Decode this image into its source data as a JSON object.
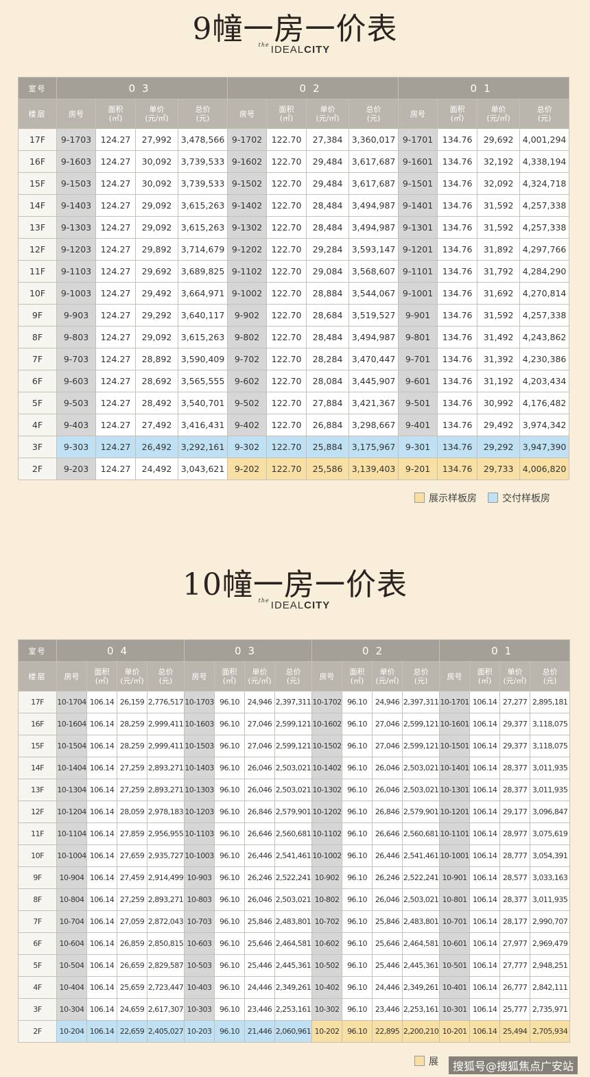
{
  "b9": {
    "title": "9幢一房一价表",
    "logo": {
      "the": "the",
      "ideal": "IDEAL",
      "city": "CITY"
    },
    "hdr_room": "室号",
    "hdr_floor": "楼层",
    "groups": [
      "03",
      "02",
      "01"
    ],
    "subhdr": [
      [
        "房号"
      ],
      [
        "面积",
        "(㎡)"
      ],
      [
        "单价",
        "(元/㎡)"
      ],
      [
        "总价",
        "(元)"
      ]
    ],
    "rows": [
      {
        "floor": "17F",
        "units": [
          [
            "9-1703",
            "124.27",
            "27,992",
            "3,478,566"
          ],
          [
            "9-1702",
            "122.70",
            "27,384",
            "3,360,017"
          ],
          [
            "9-1701",
            "134.76",
            "29,692",
            "4,001,294"
          ]
        ]
      },
      {
        "floor": "16F",
        "units": [
          [
            "9-1603",
            "124.27",
            "30,092",
            "3,739,533"
          ],
          [
            "9-1602",
            "122.70",
            "29,484",
            "3,617,687"
          ],
          [
            "9-1601",
            "134.76",
            "32,192",
            "4,338,194"
          ]
        ]
      },
      {
        "floor": "15F",
        "units": [
          [
            "9-1503",
            "124.27",
            "30,092",
            "3,739,533"
          ],
          [
            "9-1502",
            "122.70",
            "29,484",
            "3,617,687"
          ],
          [
            "9-1501",
            "134.76",
            "32,092",
            "4,324,718"
          ]
        ]
      },
      {
        "floor": "14F",
        "units": [
          [
            "9-1403",
            "124.27",
            "29,092",
            "3,615,263"
          ],
          [
            "9-1402",
            "122.70",
            "28,484",
            "3,494,987"
          ],
          [
            "9-1401",
            "134.76",
            "31,592",
            "4,257,338"
          ]
        ]
      },
      {
        "floor": "13F",
        "units": [
          [
            "9-1303",
            "124.27",
            "29,092",
            "3,615,263"
          ],
          [
            "9-1302",
            "122.70",
            "28,484",
            "3,494,987"
          ],
          [
            "9-1301",
            "134.76",
            "31,592",
            "4,257,338"
          ]
        ]
      },
      {
        "floor": "12F",
        "units": [
          [
            "9-1203",
            "124.27",
            "29,892",
            "3,714,679"
          ],
          [
            "9-1202",
            "122.70",
            "29,284",
            "3,593,147"
          ],
          [
            "9-1201",
            "134.76",
            "31,892",
            "4,297,766"
          ]
        ]
      },
      {
        "floor": "11F",
        "units": [
          [
            "9-1103",
            "124.27",
            "29,692",
            "3,689,825"
          ],
          [
            "9-1102",
            "122.70",
            "29,084",
            "3,568,607"
          ],
          [
            "9-1101",
            "134.76",
            "31,792",
            "4,284,290"
          ]
        ]
      },
      {
        "floor": "10F",
        "units": [
          [
            "9-1003",
            "124.27",
            "29,492",
            "3,664,971"
          ],
          [
            "9-1002",
            "122.70",
            "28,884",
            "3,544,067"
          ],
          [
            "9-1001",
            "134.76",
            "31,692",
            "4,270,814"
          ]
        ]
      },
      {
        "floor": "9F",
        "units": [
          [
            "9-903",
            "124.27",
            "29,292",
            "3,640,117"
          ],
          [
            "9-902",
            "122.70",
            "28,684",
            "3,519,527"
          ],
          [
            "9-901",
            "134.76",
            "31,592",
            "4,257,338"
          ]
        ]
      },
      {
        "floor": "8F",
        "units": [
          [
            "9-803",
            "124.27",
            "29,092",
            "3,615,263"
          ],
          [
            "9-802",
            "122.70",
            "28,484",
            "3,494,987"
          ],
          [
            "9-801",
            "134.76",
            "31,492",
            "4,243,862"
          ]
        ]
      },
      {
        "floor": "7F",
        "units": [
          [
            "9-703",
            "124.27",
            "28,892",
            "3,590,409"
          ],
          [
            "9-702",
            "122.70",
            "28,284",
            "3,470,447"
          ],
          [
            "9-701",
            "134.76",
            "31,392",
            "4,230,386"
          ]
        ]
      },
      {
        "floor": "6F",
        "units": [
          [
            "9-603",
            "124.27",
            "28,692",
            "3,565,555"
          ],
          [
            "9-602",
            "122.70",
            "28,084",
            "3,445,907"
          ],
          [
            "9-601",
            "134.76",
            "31,192",
            "4,203,434"
          ]
        ]
      },
      {
        "floor": "5F",
        "units": [
          [
            "9-503",
            "124.27",
            "28,492",
            "3,540,701"
          ],
          [
            "9-502",
            "122.70",
            "27,884",
            "3,421,367"
          ],
          [
            "9-501",
            "134.76",
            "30,992",
            "4,176,482"
          ]
        ]
      },
      {
        "floor": "4F",
        "units": [
          [
            "9-403",
            "124.27",
            "27,492",
            "3,416,431"
          ],
          [
            "9-402",
            "122.70",
            "26,884",
            "3,298,667"
          ],
          [
            "9-401",
            "134.76",
            "29,492",
            "3,974,342"
          ]
        ]
      },
      {
        "floor": "3F",
        "units": [
          [
            "9-303",
            "124.27",
            "26,492",
            "3,292,161",
            "blue"
          ],
          [
            "9-302",
            "122.70",
            "25,884",
            "3,175,967",
            "blue"
          ],
          [
            "9-301",
            "134.76",
            "29,292",
            "3,947,390",
            "blue"
          ]
        ]
      },
      {
        "floor": "2F",
        "units": [
          [
            "9-203",
            "124.27",
            "24,492",
            "3,043,621",
            ""
          ],
          [
            "9-202",
            "122.70",
            "25,586",
            "3,139,403",
            "yel"
          ],
          [
            "9-201",
            "134.76",
            "29,733",
            "4,006,820",
            "yel"
          ]
        ]
      }
    ],
    "legend": {
      "show": "展示样板房",
      "delivery": "交付样板房"
    }
  },
  "b10": {
    "title": "10幢一房一价表",
    "logo": {
      "the": "the",
      "ideal": "IDEAL",
      "city": "CITY"
    },
    "hdr_room": "室号",
    "hdr_floor": "楼层",
    "groups": [
      "04",
      "03",
      "02",
      "01"
    ],
    "subhdr": [
      [
        "房号"
      ],
      [
        "面积",
        "(㎡)"
      ],
      [
        "单价",
        "(元/㎡)"
      ],
      [
        "总价",
        "(元)"
      ]
    ],
    "rows": [
      {
        "floor": "17F",
        "units": [
          [
            "10-1704",
            "106.14",
            "26,159",
            "2,776,517"
          ],
          [
            "10-1703",
            "96.10",
            "24,946",
            "2,397,311"
          ],
          [
            "10-1702",
            "96.10",
            "24,946",
            "2,397,311"
          ],
          [
            "10-1701",
            "106.14",
            "27,277",
            "2,895,181"
          ]
        ]
      },
      {
        "floor": "16F",
        "units": [
          [
            "10-1604",
            "106.14",
            "28,259",
            "2,999,411"
          ],
          [
            "10-1603",
            "96.10",
            "27,046",
            "2,599,121"
          ],
          [
            "10-1602",
            "96.10",
            "27,046",
            "2,599,121"
          ],
          [
            "10-1601",
            "106.14",
            "29,377",
            "3,118,075"
          ]
        ]
      },
      {
        "floor": "15F",
        "units": [
          [
            "10-1504",
            "106.14",
            "28,259",
            "2,999,411"
          ],
          [
            "10-1503",
            "96.10",
            "27,046",
            "2,599,121"
          ],
          [
            "10-1502",
            "96.10",
            "27,046",
            "2,599,121"
          ],
          [
            "10-1501",
            "106.14",
            "29,377",
            "3,118,075"
          ]
        ]
      },
      {
        "floor": "14F",
        "units": [
          [
            "10-1404",
            "106.14",
            "27,259",
            "2,893,271"
          ],
          [
            "10-1403",
            "96.10",
            "26,046",
            "2,503,021"
          ],
          [
            "10-1402",
            "96.10",
            "26,046",
            "2,503,021"
          ],
          [
            "10-1401",
            "106.14",
            "28,377",
            "3,011,935"
          ]
        ]
      },
      {
        "floor": "13F",
        "units": [
          [
            "10-1304",
            "106.14",
            "27,259",
            "2,893,271"
          ],
          [
            "10-1303",
            "96.10",
            "26,046",
            "2,503,021"
          ],
          [
            "10-1302",
            "96.10",
            "26,046",
            "2,503,021"
          ],
          [
            "10-1301",
            "106.14",
            "28,377",
            "3,011,935"
          ]
        ]
      },
      {
        "floor": "12F",
        "units": [
          [
            "10-1204",
            "106.14",
            "28,059",
            "2,978,183"
          ],
          [
            "10-1203",
            "96.10",
            "26,846",
            "2,579,901"
          ],
          [
            "10-1202",
            "96.10",
            "26,846",
            "2,579,901"
          ],
          [
            "10-1201",
            "106.14",
            "29,177",
            "3,096,847"
          ]
        ]
      },
      {
        "floor": "11F",
        "units": [
          [
            "10-1104",
            "106.14",
            "27,859",
            "2,956,955"
          ],
          [
            "10-1103",
            "96.10",
            "26,646",
            "2,560,681"
          ],
          [
            "10-1102",
            "96.10",
            "26,646",
            "2,560,681"
          ],
          [
            "10-1101",
            "106.14",
            "28,977",
            "3,075,619"
          ]
        ]
      },
      {
        "floor": "10F",
        "units": [
          [
            "10-1004",
            "106.14",
            "27,659",
            "2,935,727"
          ],
          [
            "10-1003",
            "96.10",
            "26,446",
            "2,541,461"
          ],
          [
            "10-1002",
            "96.10",
            "26,446",
            "2,541,461"
          ],
          [
            "10-1001",
            "106.14",
            "28,777",
            "3,054,391"
          ]
        ]
      },
      {
        "floor": "9F",
        "units": [
          [
            "10-904",
            "106.14",
            "27,459",
            "2,914,499"
          ],
          [
            "10-903",
            "96.10",
            "26,246",
            "2,522,241"
          ],
          [
            "10-902",
            "96.10",
            "26,246",
            "2,522,241"
          ],
          [
            "10-901",
            "106.14",
            "28,577",
            "3,033,163"
          ]
        ]
      },
      {
        "floor": "8F",
        "units": [
          [
            "10-804",
            "106.14",
            "27,259",
            "2,893,271"
          ],
          [
            "10-803",
            "96.10",
            "26,046",
            "2,503,021"
          ],
          [
            "10-802",
            "96.10",
            "26,046",
            "2,503,021"
          ],
          [
            "10-801",
            "106.14",
            "28,377",
            "3,011,935"
          ]
        ]
      },
      {
        "floor": "7F",
        "units": [
          [
            "10-704",
            "106.14",
            "27,059",
            "2,872,043"
          ],
          [
            "10-703",
            "96.10",
            "25,846",
            "2,483,801"
          ],
          [
            "10-702",
            "96.10",
            "25,846",
            "2,483,801"
          ],
          [
            "10-701",
            "106.14",
            "28,177",
            "2,990,707"
          ]
        ]
      },
      {
        "floor": "6F",
        "units": [
          [
            "10-604",
            "106.14",
            "26,859",
            "2,850,815"
          ],
          [
            "10-603",
            "96.10",
            "25,646",
            "2,464,581"
          ],
          [
            "10-602",
            "96.10",
            "25,646",
            "2,464,581"
          ],
          [
            "10-601",
            "106.14",
            "27,977",
            "2,969,479"
          ]
        ]
      },
      {
        "floor": "5F",
        "units": [
          [
            "10-504",
            "106.14",
            "26,659",
            "2,829,587"
          ],
          [
            "10-503",
            "96.10",
            "25,446",
            "2,445,361"
          ],
          [
            "10-502",
            "96.10",
            "25,446",
            "2,445,361"
          ],
          [
            "10-501",
            "106.14",
            "27,777",
            "2,948,251"
          ]
        ]
      },
      {
        "floor": "4F",
        "units": [
          [
            "10-404",
            "106.14",
            "25,659",
            "2,723,447"
          ],
          [
            "10-403",
            "96.10",
            "24,446",
            "2,349,261"
          ],
          [
            "10-402",
            "96.10",
            "24,446",
            "2,349,261"
          ],
          [
            "10-401",
            "106.14",
            "26,777",
            "2,842,111"
          ]
        ]
      },
      {
        "floor": "3F",
        "units": [
          [
            "10-304",
            "106.14",
            "24,659",
            "2,617,307"
          ],
          [
            "10-303",
            "96.10",
            "23,446",
            "2,253,161"
          ],
          [
            "10-302",
            "96.10",
            "23,446",
            "2,253,161"
          ],
          [
            "10-301",
            "106.14",
            "25,777",
            "2,735,971"
          ]
        ]
      },
      {
        "floor": "2F",
        "units": [
          [
            "10-204",
            "106.14",
            "22,659",
            "2,405,027",
            "blue"
          ],
          [
            "10-203",
            "96.10",
            "21,446",
            "2,060,961",
            "blue"
          ],
          [
            "10-202",
            "96.10",
            "22,895",
            "2,200,210",
            "yel"
          ],
          [
            "10-201",
            "106.14",
            "25,494",
            "2,705,934",
            "yel"
          ]
        ]
      }
    ],
    "legend": {
      "show": "展"
    }
  },
  "watermark": "搜狐号@搜狐焦点广安站",
  "colors": {
    "background": "#f8eed9",
    "header_dark": "#a49f97",
    "header_light": "#bab6ae",
    "room_col": "#d6d6d6",
    "show_unit": "#f8dfa3",
    "delivery_unit": "#bfe1f3"
  }
}
